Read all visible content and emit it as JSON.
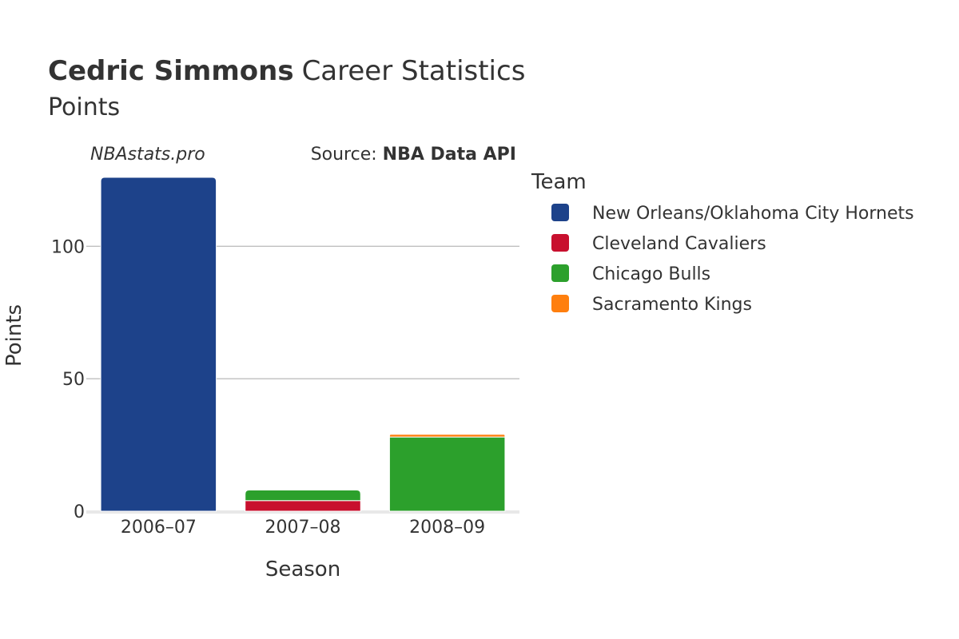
{
  "chart_data": {
    "type": "bar",
    "stacked": true,
    "title": {
      "player": "Cedric Simmons",
      "suffix": "Career Statistics",
      "subtitle": "Points"
    },
    "watermark": "NBAstats.pro",
    "source": {
      "prefix": "Source: ",
      "name": "NBA Data API"
    },
    "xlabel": "Season",
    "ylabel": "Points",
    "ylim": [
      0,
      126
    ],
    "yticks": [
      0,
      50,
      100
    ],
    "grid": true,
    "legend_position": "right",
    "legend_title": "Team",
    "categories": [
      "2006–07",
      "2007–08",
      "2008–09"
    ],
    "series": [
      {
        "name": "New Orleans/Oklahoma City Hornets",
        "color": "#1d428a",
        "values": [
          126,
          0,
          0
        ]
      },
      {
        "name": "Cleveland Cavaliers",
        "color": "#c8102e",
        "values": [
          0,
          4,
          0
        ]
      },
      {
        "name": "Chicago Bulls",
        "color": "#2ca02c",
        "values": [
          0,
          4,
          28
        ]
      },
      {
        "name": "Sacramento Kings",
        "color": "#ff7f0e",
        "values": [
          0,
          0,
          1
        ]
      }
    ]
  }
}
